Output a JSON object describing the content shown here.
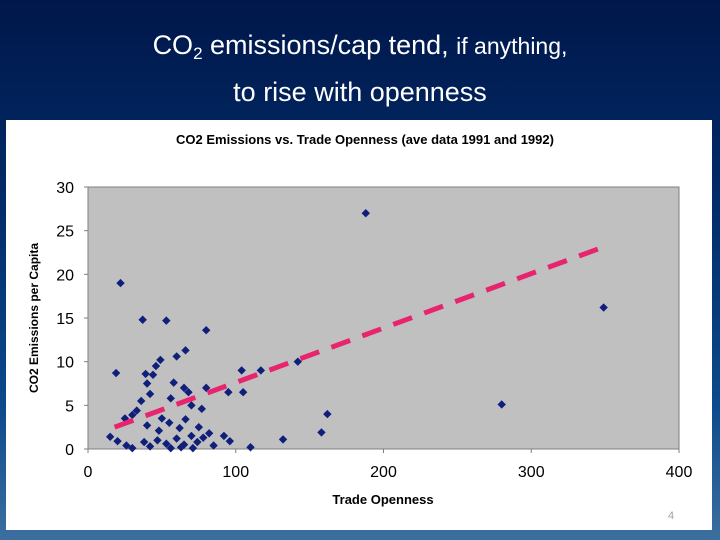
{
  "slide": {
    "title_line1_prefix": "CO",
    "title_line1_sub": "2",
    "title_line1_main": " emissions/cap tend, ",
    "title_line1_small": "if anything,",
    "title_line2": "to rise with openness",
    "page_number": "4"
  },
  "colors": {
    "plot_area": "#c0c0c0",
    "marker": "#0f1f7a",
    "trendline": "#e8246e"
  },
  "chart_data": {
    "type": "scatter",
    "title": "CO2 Emissions vs. Trade Openness (ave data 1991 and 1992)",
    "xlabel": "Trade Openness",
    "ylabel": "CO2 Emissions per Capita",
    "xlim": [
      0,
      400
    ],
    "ylim": [
      0,
      30
    ],
    "xticks": [
      "0",
      "100",
      "200",
      "300",
      "400"
    ],
    "yticks": [
      "0",
      "5",
      "10",
      "15",
      "20",
      "25",
      "30"
    ],
    "grid": false,
    "legend": "none",
    "points": [
      [
        22,
        19
      ],
      [
        188,
        27
      ],
      [
        349,
        16.2
      ],
      [
        37,
        14.8
      ],
      [
        53,
        14.7
      ],
      [
        80,
        13.6
      ],
      [
        66,
        11.3
      ],
      [
        60,
        10.6
      ],
      [
        49,
        10.2
      ],
      [
        46,
        9.5
      ],
      [
        104,
        9
      ],
      [
        117,
        9
      ],
      [
        142,
        10
      ],
      [
        19,
        8.7
      ],
      [
        39,
        8.6
      ],
      [
        44,
        8.5
      ],
      [
        40,
        7.5
      ],
      [
        58,
        7.6
      ],
      [
        65,
        7
      ],
      [
        68,
        6.5
      ],
      [
        80,
        7
      ],
      [
        95,
        6.5
      ],
      [
        105,
        6.5
      ],
      [
        42,
        6.3
      ],
      [
        56,
        5.8
      ],
      [
        36,
        5.5
      ],
      [
        70,
        5
      ],
      [
        77,
        4.6
      ],
      [
        280,
        5.1
      ],
      [
        162,
        4
      ],
      [
        25,
        3.5
      ],
      [
        33,
        4.4
      ],
      [
        30,
        3.9
      ],
      [
        50,
        3.5
      ],
      [
        66,
        3.4
      ],
      [
        40,
        2.7
      ],
      [
        55,
        3
      ],
      [
        75,
        2.5
      ],
      [
        62,
        2.4
      ],
      [
        48,
        2.1
      ],
      [
        82,
        1.8
      ],
      [
        92,
        1.5
      ],
      [
        158,
        1.9
      ],
      [
        132,
        1.1
      ],
      [
        15,
        1.4
      ],
      [
        20,
        0.9
      ],
      [
        26,
        0.4
      ],
      [
        30,
        0.1
      ],
      [
        38,
        0.8
      ],
      [
        42,
        0.3
      ],
      [
        47,
        1
      ],
      [
        53,
        0.6
      ],
      [
        60,
        1.2
      ],
      [
        65,
        0.5
      ],
      [
        70,
        1.5
      ],
      [
        74,
        0.8
      ],
      [
        78,
        1.3
      ],
      [
        85,
        0.4
      ],
      [
        96,
        0.9
      ],
      [
        110,
        0.2
      ],
      [
        56,
        0.1
      ],
      [
        63,
        0.2
      ],
      [
        71,
        0.1
      ]
    ],
    "trendline": {
      "style": "dashed",
      "x": [
        18,
        350
      ],
      "y": [
        2.5,
        23.2
      ]
    }
  }
}
